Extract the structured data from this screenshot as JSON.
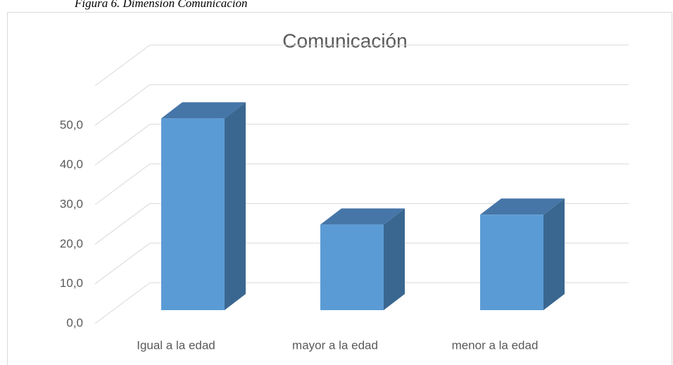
{
  "caption": "Figura 6. Dimensión Comunicación",
  "chart_data": {
    "type": "bar3d",
    "title": "Comunicación",
    "categories": [
      "Igual a la edad",
      "mayor a la edad",
      "menor a la edad"
    ],
    "values": [
      48.4,
      21.6,
      24.1
    ],
    "color": "#5b9bd5",
    "ylim": [
      0,
      60
    ],
    "yticks": [
      {
        "value": 0,
        "label": "0,0"
      },
      {
        "value": 10,
        "label": "10,0"
      },
      {
        "value": 20,
        "label": "20,0"
      },
      {
        "value": 30,
        "label": "30,0"
      },
      {
        "value": 40,
        "label": "40,0"
      },
      {
        "value": 50,
        "label": "50,0"
      }
    ],
    "grid": true
  }
}
